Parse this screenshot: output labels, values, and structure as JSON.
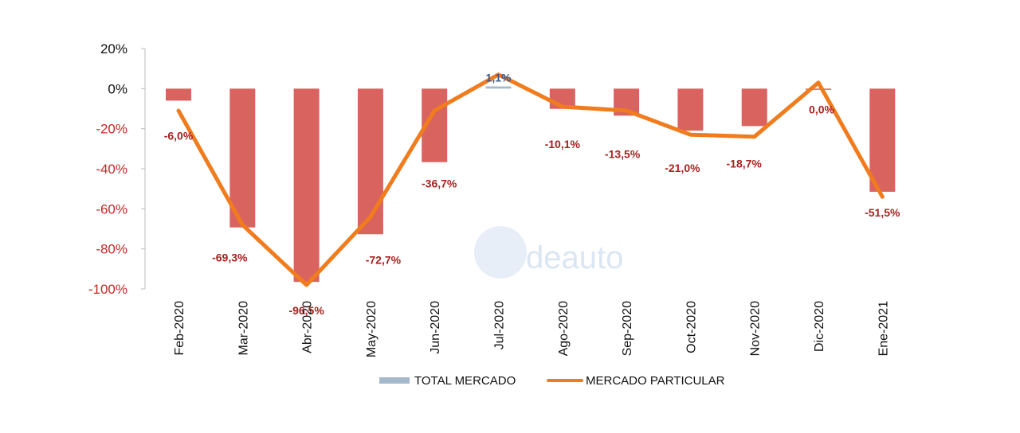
{
  "chart_data": {
    "type": "bar",
    "categories": [
      "Feb-2020",
      "Mar-2020",
      "Abr-2020",
      "May-2020",
      "Jun-2020",
      "Jul-2020",
      "Ago-2020",
      "Sep-2020",
      "Oct-2020",
      "Nov-2020",
      "Dic-2020",
      "Ene-2021"
    ],
    "series": [
      {
        "name": "TOTAL MERCADO",
        "type": "bar",
        "values": [
          -6.0,
          -69.3,
          -96.5,
          -72.7,
          -36.7,
          1.1,
          -10.1,
          -13.5,
          -21.0,
          -18.7,
          0.0,
          -51.5
        ],
        "labels": [
          "-6,0%",
          "-69,3%",
          "-96,5%",
          "-72,7%",
          "-36,7%",
          "1,1%",
          "-10,1%",
          "-13,5%",
          "-21,0%",
          "-18,7%",
          "0,0%",
          "-51,5%"
        ]
      },
      {
        "name": "MERCADO PARTICULAR",
        "type": "line",
        "values": [
          -11,
          -68,
          -98,
          -64,
          -11,
          7,
          -9,
          -11,
          -23,
          -24,
          3,
          -54
        ]
      }
    ],
    "yticks": [
      20,
      0,
      -20,
      -40,
      -60,
      -80,
      -100
    ],
    "ytick_labels": [
      "20%",
      "0%",
      "-20%",
      "-40%",
      "-60%",
      "-80%",
      "-100%"
    ],
    "ylim": [
      -100,
      20
    ],
    "grid": false,
    "legend_position": "bottom",
    "colors": {
      "bar_negative": "#d9635f",
      "bar_positive": "#a6b8cc",
      "line": "#f07c1e",
      "label_negative": "#a82020",
      "label_positive": "#3a5a8a",
      "tick_positive": "#111111",
      "tick_negative": "#c62828",
      "axis": "#bdbdbd"
    }
  },
  "watermark": {
    "text": "deauto"
  }
}
